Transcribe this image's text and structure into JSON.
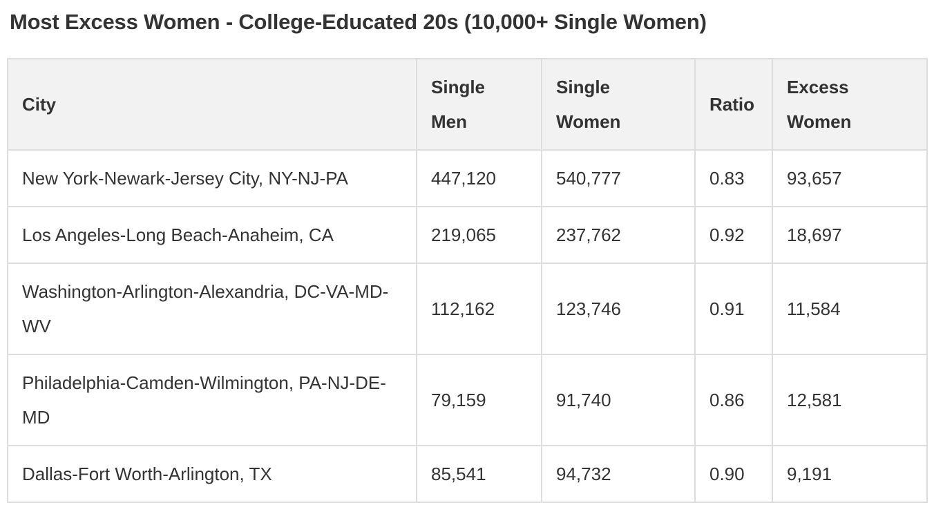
{
  "title": "Most Excess Women - College-Educated 20s (10,000+ Single Women)",
  "colors": {
    "header_background": "#f2f2f2",
    "cell_background": "#ffffff",
    "border": "#dddddd",
    "text": "#333333"
  },
  "table": {
    "columns": [
      {
        "label": "City"
      },
      {
        "label": "Single\nMen"
      },
      {
        "label": "Single\nWomen"
      },
      {
        "label": "Ratio"
      },
      {
        "label": "Excess\nWomen"
      }
    ],
    "rows": [
      [
        "New York-Newark-Jersey City, NY-NJ-PA",
        "447,120",
        "540,777",
        "0.83",
        "93,657"
      ],
      [
        "Los Angeles-Long Beach-Anaheim, CA",
        "219,065",
        "237,762",
        "0.92",
        "18,697"
      ],
      [
        "Washington-Arlington-Alexandria, DC-VA-MD-WV",
        "112,162",
        "123,746",
        "0.91",
        "11,584"
      ],
      [
        "Philadelphia-Camden-Wilmington, PA-NJ-DE-MD",
        "79,159",
        "91,740",
        "0.86",
        "12,581"
      ],
      [
        "Dallas-Fort Worth-Arlington, TX",
        "85,541",
        "94,732",
        "0.90",
        "9,191"
      ]
    ]
  },
  "chart_data": {
    "type": "table",
    "title": "Most Excess Women - College-Educated 20s (10,000+ Single Women)",
    "columns": [
      "City",
      "Single Men",
      "Single Women",
      "Ratio",
      "Excess Women"
    ],
    "rows": [
      [
        "New York-Newark-Jersey City, NY-NJ-PA",
        447120,
        540777,
        0.83,
        93657
      ],
      [
        "Los Angeles-Long Beach-Anaheim, CA",
        219065,
        237762,
        0.92,
        18697
      ],
      [
        "Washington-Arlington-Alexandria, DC-VA-MD-WV",
        112162,
        123746,
        0.91,
        11584
      ],
      [
        "Philadelphia-Camden-Wilmington, PA-NJ-DE-MD",
        79159,
        91740,
        0.86,
        12581
      ],
      [
        "Dallas-Fort Worth-Arlington, TX",
        85541,
        94732,
        0.9,
        9191
      ]
    ]
  }
}
